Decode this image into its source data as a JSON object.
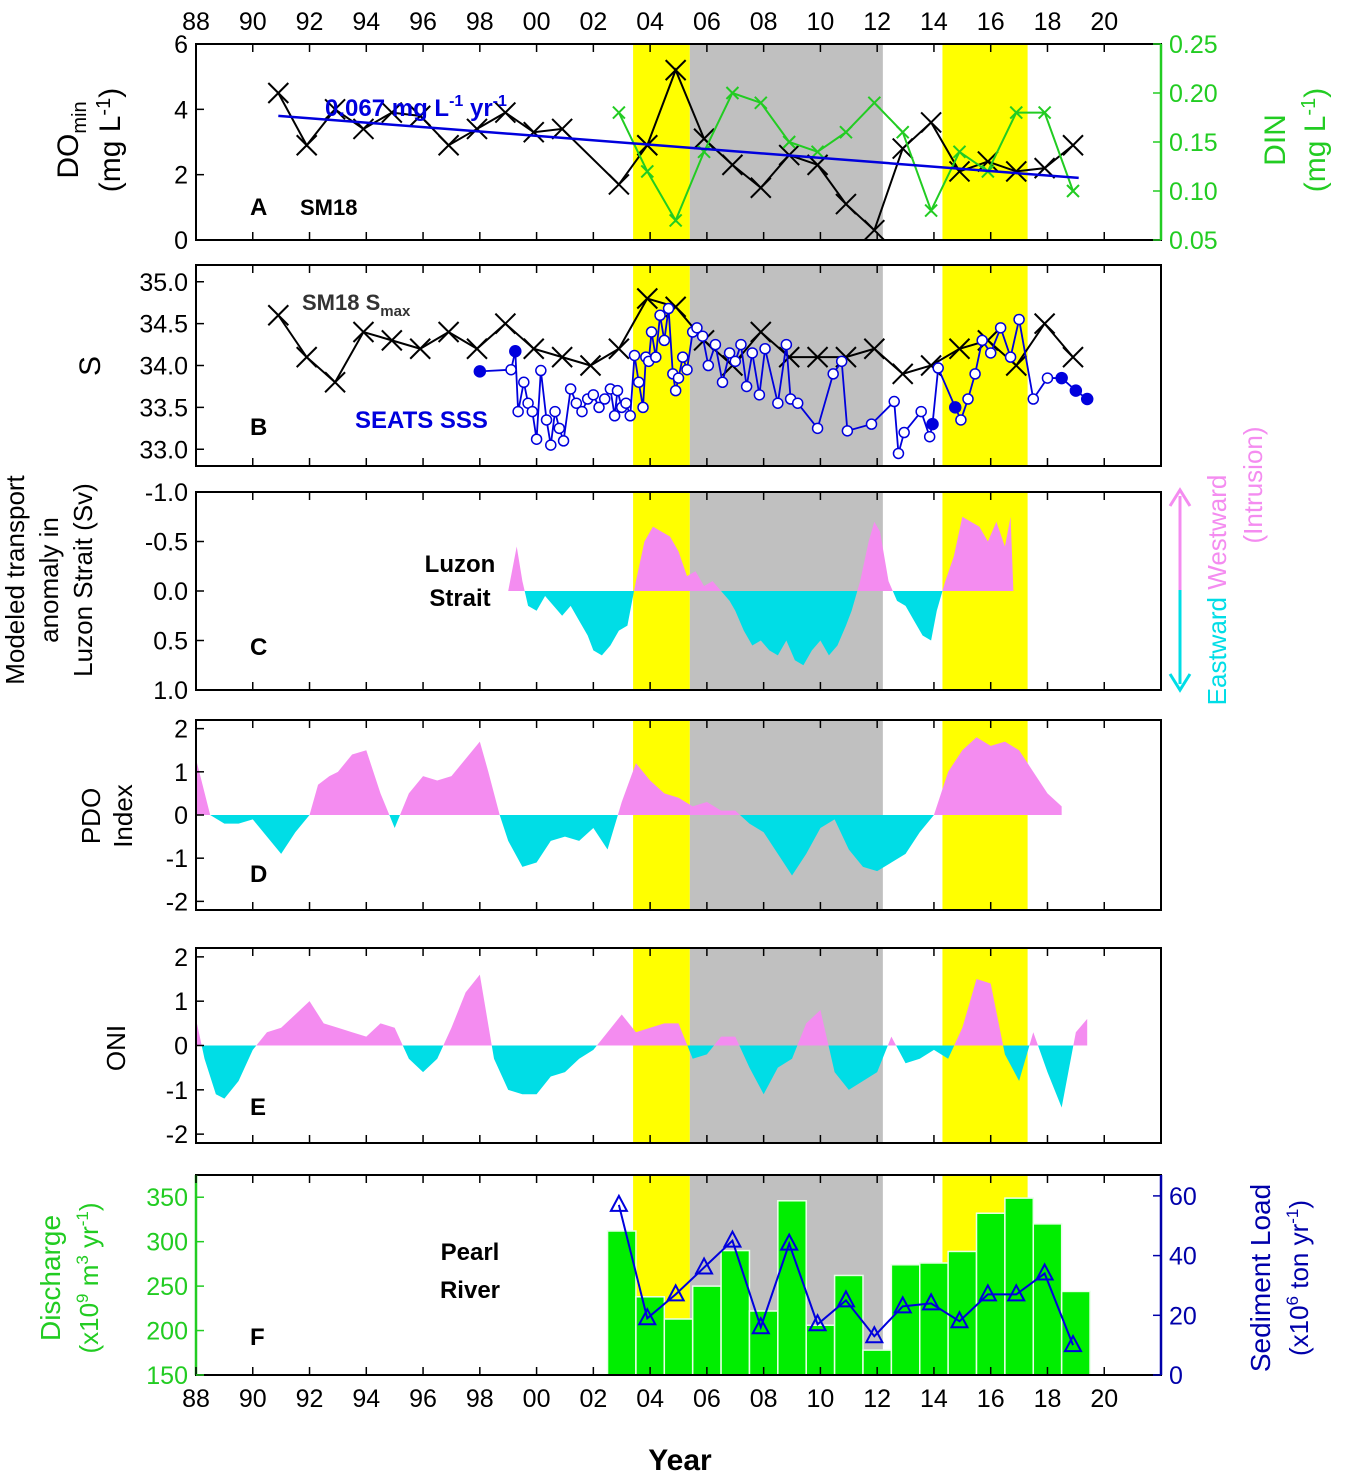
{
  "colors": {
    "black": "#000000",
    "blue": "#0000dd",
    "green": "#22cc22",
    "bar_green": "#00ee00",
    "pink": "#f48cf0",
    "cyan": "#00dde6",
    "yellow": "#ffff00",
    "gray": "#c0c0c0"
  },
  "figure": {
    "x_axis_label": "Year",
    "x_tick_labels": [
      "88",
      "90",
      "92",
      "94",
      "96",
      "98",
      "00",
      "02",
      "04",
      "06",
      "08",
      "10",
      "12",
      "14",
      "16",
      "18",
      "20"
    ],
    "x_range_years": [
      1988,
      2022
    ],
    "shading": [
      {
        "from": 2003.4,
        "to": 2005.4,
        "color": "yellow"
      },
      {
        "from": 2005.4,
        "to": 2012.2,
        "color": "gray"
      },
      {
        "from": 2014.3,
        "to": 2017.3,
        "color": "yellow"
      }
    ]
  },
  "chart_data": [
    {
      "panel": "A",
      "type": "line",
      "panel_letter": "A",
      "station_label": "SM18",
      "ylabel_left_main": "DO",
      "ylabel_left_sub": "min",
      "ylabel_left_unit": "(mg L",
      "ylabel_left_unit_sup": "-1",
      "ylabel_left_unit_end": ")",
      "ylim_left": [
        0,
        6
      ],
      "yticks_left": [
        "0",
        "2",
        "4",
        "6"
      ],
      "ylabel_right_main": "DIN",
      "ylabel_right_unit": "(mg L",
      "ylabel_right_unit_sup": "-1",
      "ylabel_right_unit_end": ")",
      "ylim_right": [
        0.05,
        0.25
      ],
      "yticks_right": [
        "0.05",
        "0.10",
        "0.15",
        "0.20",
        "0.25"
      ],
      "trend_label": "0.067 mg L",
      "trend_label_sup1": "-1",
      "trend_label_mid": " yr",
      "trend_label_sup2": "-1",
      "trend_line": {
        "x": [
          1990.9,
          2019.1
        ],
        "y": [
          3.8,
          1.9
        ]
      },
      "series": [
        {
          "name": "DOmin",
          "color": "black",
          "x": [
            1990.9,
            1991.9,
            1992.9,
            1993.9,
            1994.9,
            1995.9,
            1996.9,
            1997.9,
            1998.9,
            1999.9,
            2000.9,
            2002.9,
            2003.9,
            2004.9,
            2005.9,
            2006.9,
            2007.9,
            2008.9,
            2009.9,
            2010.9,
            2011.9,
            2012.9,
            2013.9,
            2014.9,
            2015.9,
            2016.9,
            2017.9,
            2018.9
          ],
          "y": [
            4.5,
            2.9,
            4.0,
            3.4,
            3.9,
            3.8,
            2.9,
            3.4,
            3.9,
            3.3,
            3.4,
            1.7,
            2.9,
            5.2,
            3.1,
            2.3,
            1.6,
            2.6,
            2.3,
            1.1,
            0.3,
            2.8,
            3.6,
            2.1,
            2.4,
            2.1,
            2.2,
            2.9
          ]
        },
        {
          "name": "DIN",
          "color": "green",
          "axis": "right",
          "x": [
            2002.9,
            2003.9,
            2004.9,
            2005.9,
            2006.9,
            2007.9,
            2008.9,
            2009.9,
            2010.9,
            2011.9,
            2012.9,
            2013.9,
            2014.9,
            2015.9,
            2016.9,
            2017.9,
            2018.9
          ],
          "y": [
            0.18,
            0.12,
            0.07,
            0.14,
            0.2,
            0.19,
            0.15,
            0.14,
            0.16,
            0.19,
            0.16,
            0.08,
            0.14,
            0.12,
            0.18,
            0.18,
            0.1
          ]
        }
      ]
    },
    {
      "panel": "B",
      "type": "line",
      "panel_letter": "B",
      "ylabel": "S",
      "ylim": [
        32.8,
        35.2
      ],
      "yticks": [
        "33.0",
        "33.5",
        "34.0",
        "34.5",
        "35.0"
      ],
      "smax_label": "SM18 S",
      "smax_label_sub": "max",
      "sss_label": "SEATS SSS",
      "series": [
        {
          "name": "SM18 Smax",
          "color": "black",
          "x": [
            1990.9,
            1991.9,
            1992.9,
            1993.9,
            1994.9,
            1995.9,
            1996.9,
            1997.9,
            1998.9,
            1999.9,
            2000.9,
            2001.9,
            2002.9,
            2003.9,
            2004.9,
            2005.9,
            2006.9,
            2007.9,
            2008.9,
            2009.9,
            2010.9,
            2011.9,
            2012.9,
            2013.9,
            2014.9,
            2015.9,
            2016.9,
            2017.9,
            2018.9
          ],
          "y": [
            34.6,
            34.1,
            33.8,
            34.4,
            34.3,
            34.2,
            34.4,
            34.2,
            34.5,
            34.2,
            34.1,
            34.0,
            34.2,
            34.8,
            34.7,
            34.3,
            34.0,
            34.4,
            34.1,
            34.1,
            34.1,
            34.2,
            33.9,
            34.0,
            34.2,
            34.3,
            34.0,
            34.5,
            34.1
          ]
        },
        {
          "name": "SEATS SSS",
          "color": "blue",
          "x": [
            1998.0,
            1999.1,
            1999.25,
            1999.35,
            1999.55,
            1999.7,
            1999.85,
            2000.0,
            2000.15,
            2000.35,
            2000.5,
            2000.65,
            2000.8,
            2000.95,
            2001.2,
            2001.4,
            2001.6,
            2001.8,
            2002.0,
            2002.2,
            2002.4,
            2002.6,
            2002.75,
            2002.85,
            2003.0,
            2003.15,
            2003.3,
            2003.45,
            2003.6,
            2003.75,
            2003.85,
            2003.95,
            2004.05,
            2004.2,
            2004.35,
            2004.5,
            2004.65,
            2004.8,
            2004.9,
            2005.0,
            2005.15,
            2005.3,
            2005.5,
            2005.65,
            2005.85,
            2006.05,
            2006.3,
            2006.55,
            2006.8,
            2007.0,
            2007.2,
            2007.4,
            2007.6,
            2007.85,
            2008.05,
            2008.5,
            2008.8,
            2008.95,
            2009.2,
            2009.9,
            2010.45,
            2010.75,
            2010.95,
            2011.8,
            2012.6,
            2012.75,
            2012.95,
            2013.55,
            2013.85,
            2013.95,
            2014.15,
            2014.75,
            2014.95,
            2015.2,
            2015.45,
            2015.7,
            2016.0,
            2016.35,
            2016.7,
            2017.0,
            2017.5,
            2018.0,
            2018.5,
            2019.0,
            2019.4
          ],
          "y": [
            33.93,
            33.95,
            34.17,
            33.45,
            33.8,
            33.55,
            33.45,
            33.12,
            33.94,
            33.35,
            33.05,
            33.45,
            33.25,
            33.1,
            33.72,
            33.55,
            33.45,
            33.6,
            33.65,
            33.5,
            33.6,
            33.72,
            33.4,
            33.7,
            33.5,
            33.55,
            33.4,
            34.12,
            33.8,
            33.5,
            34.1,
            34.05,
            34.4,
            34.1,
            34.6,
            34.3,
            34.68,
            33.9,
            33.7,
            33.85,
            34.1,
            33.95,
            34.4,
            34.45,
            34.35,
            34.0,
            34.25,
            33.8,
            34.15,
            34.05,
            34.25,
            33.75,
            34.15,
            33.65,
            34.2,
            33.55,
            34.25,
            33.6,
            33.55,
            33.25,
            33.9,
            34.05,
            33.22,
            33.3,
            33.57,
            32.95,
            33.2,
            33.45,
            33.15,
            33.3,
            33.97,
            33.5,
            33.35,
            33.6,
            33.9,
            34.3,
            34.15,
            34.45,
            34.1,
            34.55,
            33.6,
            33.85,
            33.85,
            33.7,
            33.6
          ]
        }
      ]
    },
    {
      "panel": "C",
      "type": "area",
      "panel_letter": "C",
      "ylabel_line1": "Modeled transport",
      "ylabel_line2": "anomaly in",
      "ylabel_line3": "Luzon Strait (Sv)",
      "ylim": [
        -1.0,
        1.0
      ],
      "y_inverted": true,
      "yticks": [
        "-1.0",
        "-0.5",
        "0.0",
        "0.5",
        "1.0"
      ],
      "inset_label_line1": "Luzon",
      "inset_label_line2": "Strait",
      "arrow_label_west": "Westward",
      "arrow_label_intrusion": "(Intrusion)",
      "arrow_label_east": "Eastward",
      "series": {
        "name": "transport",
        "x": [
          1999.0,
          1999.3,
          1999.5,
          1999.7,
          2000.0,
          2000.3,
          2000.6,
          2000.9,
          2001.2,
          2001.5,
          2001.8,
          2002.0,
          2002.3,
          2002.6,
          2002.9,
          2003.2,
          2003.5,
          2003.8,
          2004.1,
          2004.4,
          2004.7,
          2005.0,
          2005.3,
          2005.6,
          2005.9,
          2006.2,
          2006.5,
          2006.8,
          2007.0,
          2007.3,
          2007.6,
          2007.9,
          2008.2,
          2008.5,
          2008.8,
          2009.1,
          2009.4,
          2009.7,
          2010.0,
          2010.3,
          2010.6,
          2010.9,
          2011.1,
          2011.4,
          2011.7,
          2011.9,
          2012.1,
          2012.4,
          2012.7,
          2013.0,
          2013.3,
          2013.6,
          2013.9,
          2014.1,
          2014.4,
          2014.7,
          2015.0,
          2015.3,
          2015.6,
          2015.9,
          2016.2,
          2016.5,
          2016.7,
          2016.8
        ],
        "y": [
          0.0,
          -0.45,
          -0.1,
          0.15,
          0.2,
          0.05,
          0.15,
          0.25,
          0.15,
          0.3,
          0.45,
          0.6,
          0.65,
          0.55,
          0.4,
          0.35,
          -0.1,
          -0.5,
          -0.65,
          -0.6,
          -0.55,
          -0.4,
          -0.15,
          -0.2,
          -0.05,
          -0.1,
          0.0,
          0.1,
          0.2,
          0.4,
          0.55,
          0.5,
          0.6,
          0.65,
          0.5,
          0.7,
          0.75,
          0.6,
          0.5,
          0.65,
          0.55,
          0.35,
          0.2,
          -0.1,
          -0.5,
          -0.7,
          -0.6,
          -0.1,
          0.1,
          0.15,
          0.3,
          0.45,
          0.5,
          0.2,
          -0.1,
          -0.35,
          -0.75,
          -0.7,
          -0.65,
          -0.5,
          -0.7,
          -0.45,
          -0.75,
          0.0
        ]
      }
    },
    {
      "panel": "D",
      "type": "area",
      "panel_letter": "D",
      "ylabel_line1": "PDO",
      "ylabel_line2": "Index",
      "ylim": [
        -2.2,
        2.2
      ],
      "yticks": [
        "-2",
        "-1",
        "0",
        "1",
        "2"
      ],
      "series": {
        "name": "PDO",
        "x": [
          1988.0,
          1988.5,
          1989.0,
          1989.5,
          1990.0,
          1990.5,
          1991.0,
          1991.5,
          1992.0,
          1992.3,
          1992.7,
          1993.0,
          1993.5,
          1994.0,
          1994.5,
          1995.0,
          1995.5,
          1996.0,
          1996.5,
          1997.0,
          1997.5,
          1998.0,
          1998.3,
          1998.7,
          1999.0,
          1999.5,
          2000.0,
          2000.5,
          2001.0,
          2001.5,
          2002.0,
          2002.5,
          2003.0,
          2003.5,
          2004.0,
          2004.5,
          2005.0,
          2005.5,
          2006.0,
          2006.5,
          2007.0,
          2007.5,
          2008.0,
          2008.5,
          2009.0,
          2009.5,
          2010.0,
          2010.5,
          2011.0,
          2011.5,
          2012.0,
          2012.5,
          2013.0,
          2013.5,
          2014.0,
          2014.5,
          2015.0,
          2015.5,
          2016.0,
          2016.5,
          2017.0,
          2017.5,
          2018.0,
          2018.5
        ],
        "y": [
          1.3,
          0.0,
          -0.2,
          -0.2,
          -0.1,
          -0.5,
          -0.9,
          -0.4,
          0.0,
          0.7,
          0.9,
          1.0,
          1.4,
          1.5,
          0.5,
          -0.3,
          0.5,
          0.9,
          0.8,
          0.9,
          1.3,
          1.7,
          1.0,
          0.0,
          -0.6,
          -1.2,
          -1.1,
          -0.6,
          -0.5,
          -0.6,
          -0.3,
          -0.8,
          0.3,
          1.2,
          0.8,
          0.5,
          0.4,
          0.2,
          0.3,
          0.1,
          0.1,
          -0.2,
          -0.4,
          -0.9,
          -1.4,
          -0.9,
          -0.3,
          -0.1,
          -0.8,
          -1.2,
          -1.3,
          -1.1,
          -0.9,
          -0.4,
          0.0,
          1.0,
          1.5,
          1.8,
          1.6,
          1.7,
          1.5,
          1.0,
          0.5,
          0.2
        ]
      }
    },
    {
      "panel": "E",
      "type": "area",
      "panel_letter": "E",
      "ylabel": "ONI",
      "ylim": [
        -2.2,
        2.2
      ],
      "yticks": [
        "-2",
        "-1",
        "0",
        "1",
        "2"
      ],
      "series": {
        "name": "ONI",
        "x": [
          1988.0,
          1988.3,
          1988.7,
          1989.0,
          1989.5,
          1990.0,
          1990.5,
          1991.0,
          1991.5,
          1992.0,
          1992.5,
          1993.0,
          1993.5,
          1994.0,
          1994.5,
          1995.0,
          1995.5,
          1996.0,
          1996.5,
          1997.0,
          1997.5,
          1998.0,
          1998.5,
          1999.0,
          1999.5,
          2000.0,
          2000.5,
          2001.0,
          2001.5,
          2002.0,
          2002.5,
          2003.0,
          2003.5,
          2004.0,
          2004.5,
          2005.0,
          2005.5,
          2006.0,
          2006.5,
          2007.0,
          2007.5,
          2008.0,
          2008.5,
          2009.0,
          2009.5,
          2010.0,
          2010.5,
          2011.0,
          2011.5,
          2012.0,
          2012.5,
          2013.0,
          2013.5,
          2014.0,
          2014.5,
          2015.0,
          2015.5,
          2016.0,
          2016.5,
          2017.0,
          2017.5,
          2018.0,
          2018.5,
          2019.0,
          2019.4
        ],
        "y": [
          0.6,
          -0.3,
          -1.1,
          -1.2,
          -0.8,
          -0.1,
          0.3,
          0.4,
          0.7,
          1.0,
          0.5,
          0.4,
          0.3,
          0.2,
          0.5,
          0.4,
          -0.3,
          -0.6,
          -0.3,
          0.4,
          1.2,
          1.6,
          -0.3,
          -1.0,
          -1.1,
          -1.1,
          -0.7,
          -0.6,
          -0.3,
          -0.1,
          0.3,
          0.7,
          0.3,
          0.4,
          0.5,
          0.5,
          -0.3,
          -0.2,
          0.2,
          0.2,
          -0.5,
          -1.1,
          -0.5,
          -0.3,
          0.5,
          0.8,
          -0.6,
          -1.0,
          -0.8,
          -0.6,
          0.2,
          -0.4,
          -0.3,
          -0.1,
          -0.3,
          0.4,
          1.5,
          1.4,
          -0.2,
          -0.8,
          0.3,
          -0.6,
          -1.4,
          0.3,
          0.6
        ]
      }
    },
    {
      "panel": "F",
      "type": "bar",
      "panel_letter": "F",
      "inset_label_line1": "Pearl",
      "inset_label_line2": "River",
      "ylabel_left_line1": "Discharge",
      "ylabel_left_line2_a": "(x10",
      "ylabel_left_line2_sup1": "9",
      "ylabel_left_line2_b": " m",
      "ylabel_left_line2_sup2": "3",
      "ylabel_left_line2_c": " yr",
      "ylabel_left_line2_sup3": "-1",
      "ylabel_left_line2_d": ")",
      "ylim_left": [
        150,
        375
      ],
      "yticks_left": [
        "150",
        "200",
        "250",
        "300",
        "350"
      ],
      "ylabel_right_line1": "Sediment Load",
      "ylabel_right_line2_a": "(x10",
      "ylabel_right_line2_sup1": "6",
      "ylabel_right_line2_b": " ton yr",
      "ylabel_right_line2_sup2": "-1",
      "ylabel_right_line2_c": ")",
      "ylim_right": [
        0,
        67
      ],
      "yticks_right": [
        "0",
        "20",
        "40",
        "60"
      ],
      "bar_series": {
        "name": "Discharge",
        "x": [
          2003,
          2004,
          2005,
          2006,
          2007,
          2008,
          2009,
          2010,
          2011,
          2012,
          2013,
          2014,
          2015,
          2016,
          2017,
          2018,
          2019
        ],
        "values": [
          312,
          238,
          213,
          250,
          290,
          222,
          346,
          206,
          262,
          178,
          274,
          276,
          289,
          332,
          349,
          320,
          244
        ]
      },
      "line_series": {
        "name": "Sediment Load",
        "x": [
          2002.9,
          2003.9,
          2004.9,
          2005.9,
          2006.9,
          2007.9,
          2008.9,
          2009.9,
          2010.9,
          2011.9,
          2012.9,
          2013.9,
          2014.9,
          2015.9,
          2016.9,
          2017.9,
          2018.9
        ],
        "values": [
          57,
          19,
          27,
          36,
          45,
          16,
          44,
          17,
          25,
          13,
          23,
          24,
          18,
          27,
          27,
          34,
          10
        ]
      }
    }
  ]
}
